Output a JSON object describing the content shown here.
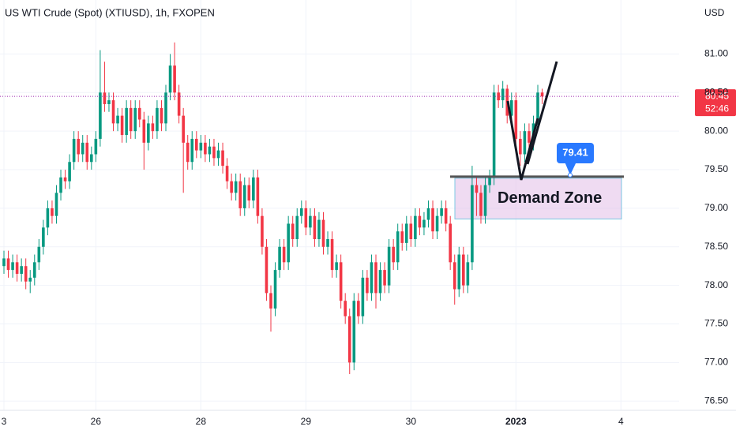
{
  "chart_data": {
    "type": "candlestick",
    "title": "US WTI Crude (Spot) (XTIUSD), 1h, FXOPEN",
    "unit_label": "USD",
    "up_color": "#089981",
    "down_color": "#f23645",
    "open": [
      78.25,
      78.35,
      78.2,
      78.3,
      78.15,
      78.25,
      78.05,
      78.1,
      78.3,
      78.5,
      78.75,
      79.0,
      78.9,
      79.2,
      79.4,
      79.35,
      79.6,
      79.9,
      79.7,
      79.85,
      79.6,
      79.7,
      79.9,
      80.5,
      80.35,
      80.4,
      80.1,
      80.2,
      79.95,
      80.3,
      80.0,
      80.3,
      80.15,
      79.85,
      80.1,
      80.0,
      80.3,
      80.1,
      80.5,
      80.85,
      80.5,
      80.2,
      79.85,
      79.6,
      79.9,
      79.75,
      79.85,
      79.7,
      79.8,
      79.65,
      79.75,
      79.55,
      79.35,
      79.2,
      79.35,
      79.0,
      79.3,
      79.1,
      79.4,
      78.9,
      78.5,
      77.9,
      77.7,
      78.2,
      78.5,
      78.3,
      78.8,
      78.6,
      78.9,
      79.0,
      78.75,
      78.9,
      78.6,
      78.85,
      78.5,
      78.6,
      78.2,
      78.3,
      77.8,
      77.6,
      77.0,
      77.8,
      77.6,
      78.1,
      77.9,
      78.3,
      77.9,
      78.2,
      78.0,
      78.5,
      78.3,
      78.7,
      78.55,
      78.8,
      78.6,
      78.9,
      78.75,
      78.85,
      79.0,
      78.7,
      78.9,
      79.0,
      78.8,
      78.3,
      77.95,
      78.4,
      78.0,
      78.3,
      79.3,
      79.2,
      78.9,
      79.3,
      79.4,
      80.5,
      80.4,
      80.55,
      80.2,
      80.4,
      79.9,
      79.7,
      80.0,
      79.85,
      80.1,
      80.5
    ],
    "high": [
      78.45,
      78.45,
      78.4,
      78.4,
      78.35,
      78.35,
      78.2,
      78.4,
      78.6,
      78.85,
      79.1,
      79.1,
      79.3,
      79.5,
      79.5,
      79.7,
      80.0,
      80.0,
      79.95,
      79.95,
      79.8,
      80.0,
      81.05,
      80.9,
      80.5,
      80.5,
      80.3,
      80.3,
      80.4,
      80.4,
      80.4,
      80.4,
      80.25,
      80.2,
      80.2,
      80.4,
      80.4,
      80.6,
      81.0,
      81.15,
      80.6,
      80.3,
      79.95,
      80.0,
      80.0,
      79.95,
      79.95,
      79.9,
      79.9,
      79.85,
      79.85,
      79.65,
      79.45,
      79.45,
      79.45,
      79.4,
      79.4,
      79.5,
      79.5,
      79.0,
      78.6,
      78.0,
      78.3,
      78.6,
      78.6,
      78.9,
      78.9,
      79.0,
      79.1,
      79.1,
      79.0,
      79.0,
      78.95,
      78.95,
      78.7,
      78.7,
      78.4,
      78.4,
      77.9,
      77.7,
      77.9,
      77.9,
      78.2,
      78.2,
      78.4,
      78.4,
      78.3,
      78.3,
      78.6,
      78.6,
      78.8,
      78.8,
      78.9,
      78.9,
      79.0,
      79.0,
      78.95,
      79.1,
      79.1,
      79.0,
      79.1,
      79.1,
      78.9,
      78.4,
      78.5,
      78.5,
      78.4,
      79.55,
      79.4,
      79.3,
      79.4,
      79.5,
      80.6,
      80.6,
      80.65,
      80.6,
      80.5,
      80.5,
      80.0,
      80.1,
      80.1,
      80.2,
      80.6,
      80.55
    ],
    "low": [
      78.15,
      78.1,
      78.1,
      78.05,
      78.05,
      77.95,
      77.9,
      78.0,
      78.2,
      78.4,
      78.65,
      78.8,
      78.8,
      79.1,
      79.25,
      79.25,
      79.5,
      79.6,
      79.6,
      79.5,
      79.5,
      79.6,
      79.8,
      80.25,
      80.25,
      80.0,
      80.0,
      79.85,
      79.85,
      79.9,
      79.9,
      80.05,
      79.5,
      79.75,
      79.9,
      79.9,
      80.0,
      80.0,
      80.4,
      80.4,
      80.1,
      79.2,
      79.5,
      79.5,
      79.65,
      79.65,
      79.6,
      79.6,
      79.55,
      79.55,
      79.45,
      79.25,
      79.1,
      79.1,
      78.9,
      78.9,
      79.0,
      79.0,
      78.8,
      78.4,
      77.8,
      77.4,
      77.6,
      78.1,
      78.2,
      78.2,
      78.5,
      78.5,
      78.8,
      78.65,
      78.65,
      78.5,
      78.5,
      78.4,
      78.4,
      78.1,
      78.1,
      77.7,
      77.5,
      76.85,
      76.9,
      77.5,
      77.5,
      77.8,
      77.8,
      77.7,
      77.8,
      77.9,
      77.9,
      78.2,
      78.2,
      78.45,
      78.45,
      78.5,
      78.5,
      78.65,
      78.65,
      78.75,
      78.6,
      78.6,
      78.8,
      78.7,
      78.2,
      77.75,
      77.85,
      77.9,
      77.9,
      78.2,
      78.9,
      78.8,
      78.8,
      79.2,
      79.3,
      80.3,
      80.3,
      80.1,
      80.1,
      79.8,
      79.55,
      79.6,
      79.75,
      79.75,
      80.0,
      80.35
    ],
    "close": [
      78.35,
      78.2,
      78.3,
      78.15,
      78.25,
      78.05,
      78.1,
      78.3,
      78.5,
      78.75,
      79.0,
      78.9,
      79.2,
      79.4,
      79.35,
      79.6,
      79.9,
      79.7,
      79.85,
      79.6,
      79.7,
      79.9,
      80.5,
      80.35,
      80.4,
      80.1,
      80.2,
      79.95,
      80.3,
      80.0,
      80.3,
      80.15,
      79.85,
      80.1,
      80.0,
      80.3,
      80.1,
      80.5,
      80.85,
      80.5,
      80.2,
      79.85,
      79.6,
      79.9,
      79.75,
      79.85,
      79.7,
      79.8,
      79.65,
      79.75,
      79.55,
      79.35,
      79.2,
      79.35,
      79.0,
      79.3,
      79.1,
      79.4,
      78.9,
      78.5,
      77.9,
      77.7,
      78.2,
      78.5,
      78.3,
      78.8,
      78.6,
      78.9,
      79.0,
      78.75,
      78.9,
      78.6,
      78.85,
      78.5,
      78.6,
      78.2,
      78.3,
      77.8,
      77.6,
      77.0,
      77.8,
      77.6,
      78.1,
      77.9,
      78.3,
      77.9,
      78.2,
      78.0,
      78.5,
      78.3,
      78.7,
      78.55,
      78.8,
      78.6,
      78.9,
      78.75,
      78.85,
      79.0,
      78.7,
      78.9,
      79.0,
      78.8,
      78.3,
      77.95,
      78.4,
      78.0,
      78.3,
      79.3,
      79.2,
      78.9,
      79.3,
      79.4,
      80.5,
      80.4,
      80.55,
      80.2,
      80.4,
      79.9,
      79.7,
      80.0,
      79.85,
      80.1,
      80.5,
      80.45
    ],
    "xlim": [
      -0.9,
      154.3
    ],
    "xticks": [
      {
        "value": 0,
        "label": "3"
      },
      {
        "value": 21,
        "label": "26"
      },
      {
        "value": 45,
        "label": "28"
      },
      {
        "value": 69,
        "label": "29"
      },
      {
        "value": 93,
        "label": "30"
      },
      {
        "value": 117,
        "label": "2023"
      },
      {
        "value": 141,
        "label": "4"
      }
    ],
    "ylim": [
      76.38,
      81.7
    ],
    "yticks": [
      {
        "value": 76.5,
        "label": "76.50"
      },
      {
        "value": 77,
        "label": "77.00"
      },
      {
        "value": 77.5,
        "label": "77.50"
      },
      {
        "value": 78,
        "label": "78.00"
      },
      {
        "value": 78.5,
        "label": "78.50"
      },
      {
        "value": 79,
        "label": "79.00"
      },
      {
        "value": 79.5,
        "label": "79.50"
      },
      {
        "value": 80,
        "label": "80.00"
      },
      {
        "value": 80.5,
        "label": "80.50"
      },
      {
        "value": 81,
        "label": "81.00"
      }
    ],
    "last_price": {
      "value": 80.45,
      "label": "80.45"
    },
    "countdown": "52:46",
    "level": {
      "value": 79.41,
      "label": "79.41"
    },
    "demand_zone": {
      "label": "Demand Zone",
      "low": 78.86,
      "high": 79.39
    }
  }
}
